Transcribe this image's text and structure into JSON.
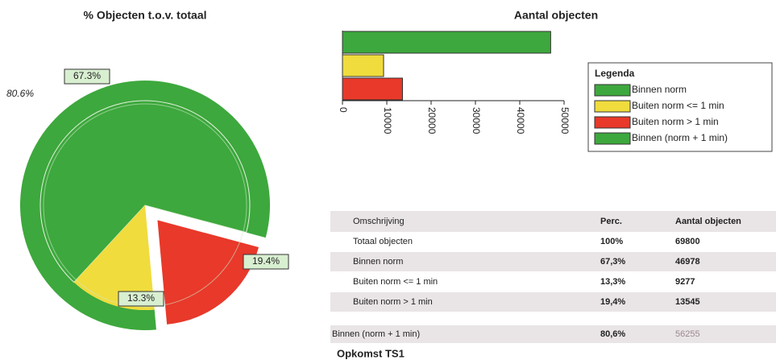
{
  "chart_data": [
    {
      "type": "pie",
      "title": "% Objecten t.o.v. totaal",
      "values": [
        67.3,
        13.3,
        19.4
      ],
      "value_labels": [
        "67.3%",
        "13.3%",
        "19.4%"
      ],
      "colors": [
        "#3da83d",
        "#f0dc3c",
        "#e8392a"
      ],
      "ring": {
        "value": 80.6,
        "label": "80.6%",
        "color": "#3da83d"
      }
    },
    {
      "type": "bar",
      "orientation": "horizontal",
      "title": "Aantal objecten",
      "categories": [
        null,
        null,
        null
      ],
      "values": [
        46978,
        9277,
        13545
      ],
      "colors": [
        "#3da83d",
        "#f0dc3c",
        "#e8392a"
      ],
      "xlim": [
        0,
        50000
      ],
      "xticks": [
        0,
        10000,
        20000,
        30000,
        40000,
        50000
      ],
      "legend": {
        "title": "Legenda",
        "items": [
          {
            "name": "Binnen norm",
            "color": "#3da83d"
          },
          {
            "name": "Buiten norm <= 1 min",
            "color": "#f0dc3c"
          },
          {
            "name": "Buiten norm > 1 min",
            "color": "#e8392a"
          },
          {
            "name": "Binnen (norm + 1 min)",
            "color": "#3da83d"
          }
        ]
      }
    }
  ],
  "table": {
    "header": [
      "Omschrijving",
      "Perc.",
      "Aantal objecten"
    ],
    "rows": [
      [
        "Totaal objecten",
        "100%",
        "69800"
      ],
      [
        "Binnen norm",
        "67,3%",
        "46978"
      ],
      [
        "Buiten norm <= 1 min",
        "13,3%",
        "9277"
      ],
      [
        "Buiten norm > 1 min",
        "19,4%",
        "13545"
      ]
    ],
    "summary": [
      "Binnen (norm + 1 min)",
      "80,6%",
      "56255"
    ],
    "footer": "Opkomst TS1"
  }
}
